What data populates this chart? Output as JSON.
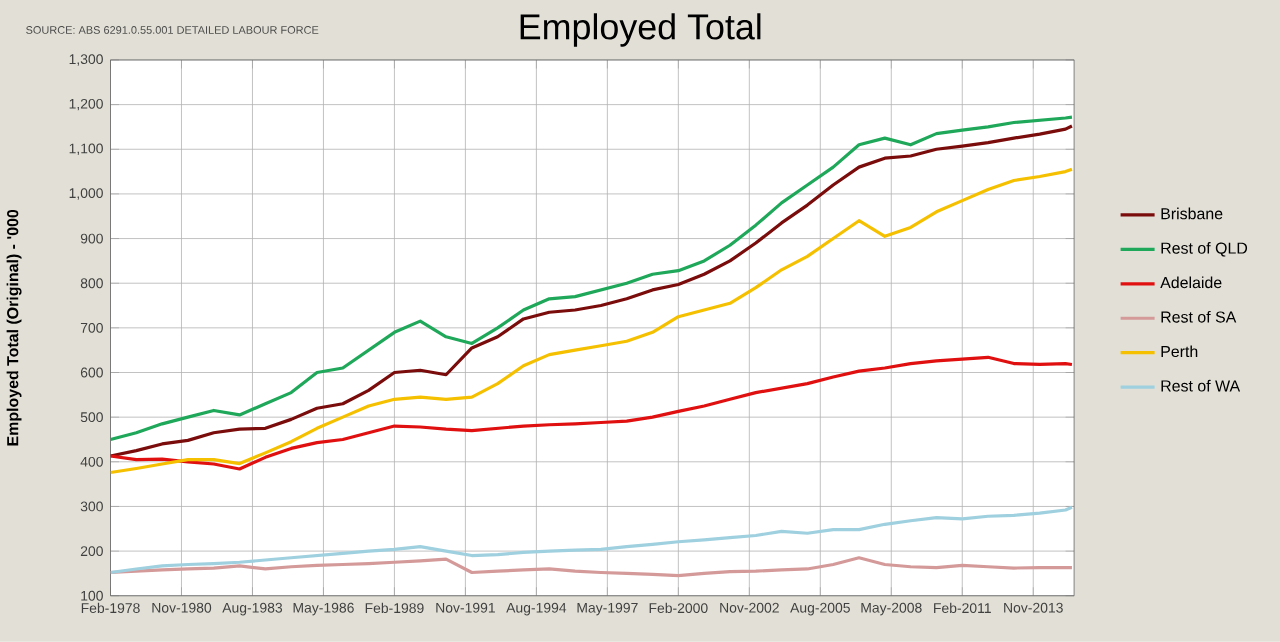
{
  "chart_data": {
    "type": "line",
    "title": "Employed Total",
    "ylabel": "Employed Total (Original) - '000",
    "annotations": [
      "SOURCE: ABS 6291.0.55.001 DETAILED LABOUR FORCE"
    ],
    "x": [
      "1978-02",
      "1979-02",
      "1980-02",
      "1981-02",
      "1982-02",
      "1983-02",
      "1984-02",
      "1985-02",
      "1986-02",
      "1987-02",
      "1988-02",
      "1989-02",
      "1990-02",
      "1991-02",
      "1992-02",
      "1993-02",
      "1994-02",
      "1995-02",
      "1996-02",
      "1997-02",
      "1998-02",
      "1999-02",
      "2000-02",
      "2001-02",
      "2002-02",
      "2003-02",
      "2004-02",
      "2005-02",
      "2006-02",
      "2007-02",
      "2008-02",
      "2009-02",
      "2010-02",
      "2011-02",
      "2012-02",
      "2013-02",
      "2014-02",
      "2015-02",
      "2015-05"
    ],
    "series": [
      {
        "name": "Brisbane",
        "color": "#7b0c0c",
        "values": [
          413,
          425,
          440,
          448,
          465,
          473,
          475,
          495,
          520,
          530,
          560,
          600,
          605,
          595,
          655,
          680,
          720,
          735,
          740,
          750,
          765,
          785,
          797,
          820,
          850,
          890,
          935,
          975,
          1020,
          1060,
          1080,
          1085,
          1100,
          1107,
          1115,
          1125,
          1134,
          1145,
          1152
        ]
      },
      {
        "name": "Rest of QLD",
        "color": "#1fa85a",
        "values": [
          450,
          465,
          485,
          500,
          515,
          505,
          530,
          555,
          600,
          610,
          650,
          690,
          715,
          680,
          665,
          700,
          740,
          765,
          770,
          785,
          800,
          820,
          828,
          850,
          885,
          930,
          980,
          1020,
          1060,
          1110,
          1125,
          1110,
          1135,
          1143,
          1150,
          1160,
          1165,
          1170,
          1172
        ]
      },
      {
        "name": "Adelaide",
        "color": "#e01010",
        "values": [
          413,
          405,
          406,
          400,
          395,
          384,
          410,
          430,
          443,
          450,
          465,
          480,
          478,
          473,
          470,
          475,
          480,
          483,
          485,
          488,
          491,
          500,
          513,
          525,
          540,
          555,
          565,
          575,
          590,
          603,
          610,
          620,
          626,
          630,
          634,
          620,
          618,
          620,
          618
        ]
      },
      {
        "name": "Rest of SA",
        "color": "#d49a9a",
        "values": [
          152,
          155,
          158,
          160,
          162,
          167,
          160,
          165,
          168,
          170,
          172,
          175,
          178,
          182,
          152,
          155,
          158,
          160,
          155,
          152,
          150,
          148,
          145,
          150,
          154,
          155,
          158,
          160,
          170,
          185,
          170,
          165,
          163,
          168,
          165,
          162,
          163,
          163,
          163
        ]
      },
      {
        "name": "Perth",
        "color": "#f5c000",
        "values": [
          376,
          385,
          395,
          405,
          405,
          396,
          420,
          445,
          475,
          500,
          525,
          540,
          545,
          540,
          545,
          575,
          615,
          640,
          650,
          660,
          670,
          690,
          725,
          740,
          755,
          790,
          830,
          860,
          900,
          940,
          905,
          925,
          960,
          985,
          1010,
          1030,
          1039,
          1050,
          1055
        ]
      },
      {
        "name": "Rest of WA",
        "color": "#9fd0df",
        "values": [
          152,
          160,
          167,
          170,
          172,
          175,
          180,
          185,
          190,
          195,
          200,
          204,
          210,
          200,
          190,
          192,
          197,
          200,
          202,
          204,
          210,
          215,
          221,
          225,
          230,
          235,
          244,
          240,
          248,
          248,
          260,
          268,
          275,
          272,
          278,
          280,
          285,
          292,
          298
        ]
      }
    ],
    "xlim": [
      "1978-02",
      "2015-06"
    ],
    "xticks": [
      {
        "value": "1978-02",
        "label": "Feb-1978"
      },
      {
        "value": "1980-11",
        "label": "Nov-1980"
      },
      {
        "value": "1983-08",
        "label": "Aug-1983"
      },
      {
        "value": "1986-05",
        "label": "May-1986"
      },
      {
        "value": "1989-02",
        "label": "Feb-1989"
      },
      {
        "value": "1991-11",
        "label": "Nov-1991"
      },
      {
        "value": "1994-08",
        "label": "Aug-1994"
      },
      {
        "value": "1997-05",
        "label": "May-1997"
      },
      {
        "value": "2000-02",
        "label": "Feb-2000"
      },
      {
        "value": "2002-11",
        "label": "Nov-2002"
      },
      {
        "value": "2005-08",
        "label": "Aug-2005"
      },
      {
        "value": "2008-05",
        "label": "May-2008"
      },
      {
        "value": "2011-02",
        "label": "Feb-2011"
      },
      {
        "value": "2013-11",
        "label": "Nov-2013"
      }
    ],
    "ylim": [
      100,
      1300
    ],
    "yticks": [
      100,
      200,
      300,
      400,
      500,
      600,
      700,
      800,
      900,
      {
        "value": 1000,
        "label": "1,000"
      },
      {
        "value": 1100,
        "label": "1,100"
      },
      {
        "value": 1200,
        "label": "1,200"
      },
      {
        "value": 1300,
        "label": "1,300"
      }
    ],
    "grid": true,
    "legend": "right",
    "marker": "none",
    "line_style": "solid"
  }
}
